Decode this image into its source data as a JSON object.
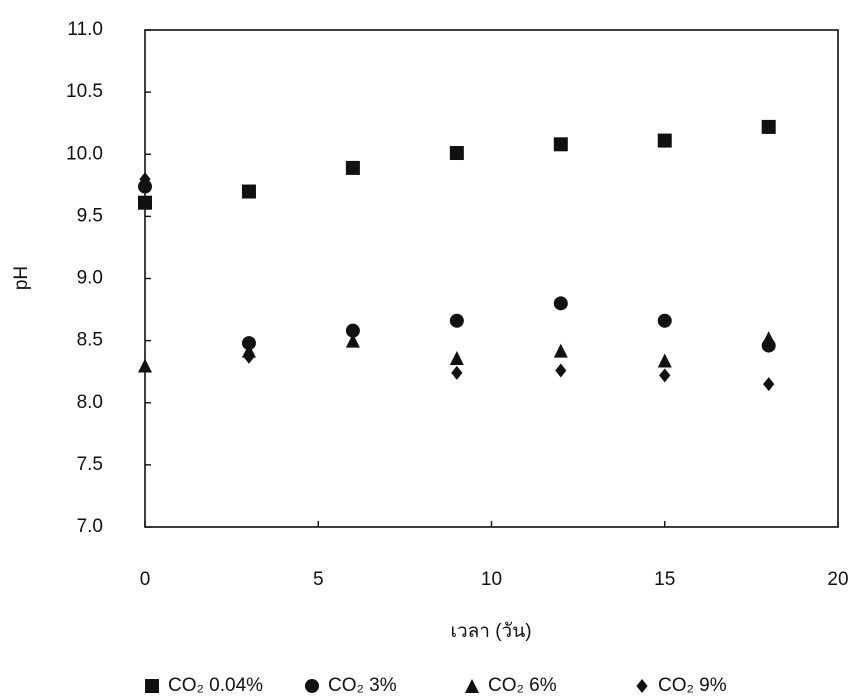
{
  "chart_data": {
    "type": "scatter",
    "xlabel": "เวลา (วัน)",
    "ylabel": "pH",
    "xlim": [
      0,
      20
    ],
    "xticks": [
      0,
      5,
      10,
      15,
      20
    ],
    "ylim": [
      7,
      11
    ],
    "yticks": [
      {
        "value": 7,
        "label": "7.0"
      },
      7.5,
      {
        "value": 8,
        "label": "8.0"
      },
      8.5,
      {
        "value": 9,
        "label": "9.0"
      },
      9.5,
      {
        "value": 10,
        "label": "10.0"
      },
      10.5,
      {
        "value": 11,
        "label": "11.0"
      }
    ],
    "x": [
      0,
      3,
      6,
      9,
      12,
      15,
      18
    ],
    "series": [
      {
        "name": "CO₂ 0.04%",
        "color": "#111111",
        "marker": "square",
        "values": [
          9.61,
          9.7,
          9.89,
          10.01,
          10.08,
          10.11,
          10.22
        ]
      },
      {
        "name": "CO₂ 3%",
        "color": "#111111",
        "marker": "circle",
        "values": [
          9.74,
          8.48,
          8.58,
          8.66,
          8.8,
          8.66,
          8.46
        ]
      },
      {
        "name": "CO₂ 6%",
        "color": "#111111",
        "marker": "triangle",
        "values": [
          8.3,
          8.42,
          8.5,
          8.36,
          8.42,
          8.34,
          8.52
        ]
      },
      {
        "name": "CO₂ 9%",
        "color": "#111111",
        "marker": "diamond",
        "values": [
          9.8,
          8.37,
          8.58,
          8.24,
          8.26,
          8.22,
          8.15
        ]
      }
    ]
  }
}
